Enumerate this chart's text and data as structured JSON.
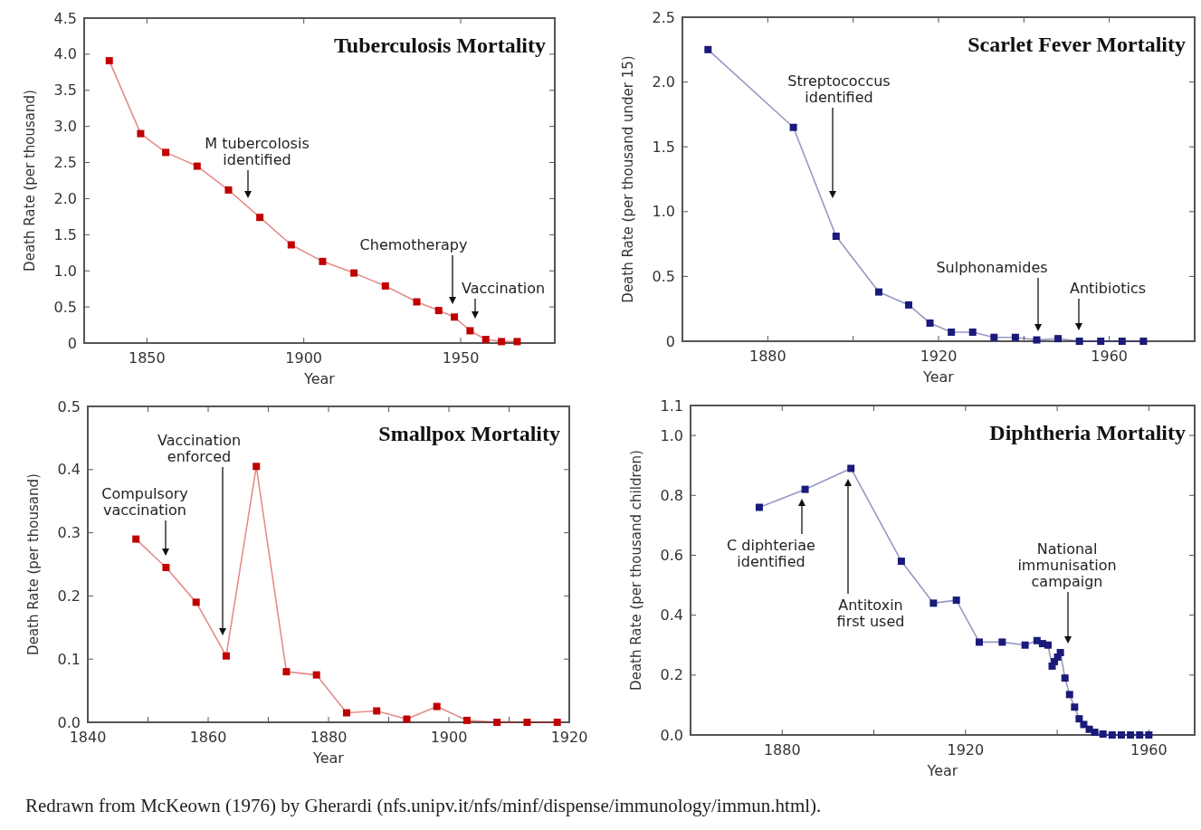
{
  "chart_data": [
    {
      "type": "line",
      "title": "Tuberculosis Mortality",
      "xlabel": "Year",
      "ylabel": "Death Rate (per thousand)",
      "marker": "square",
      "grid": false,
      "x": [
        1838,
        1848,
        1856,
        1866,
        1876,
        1886,
        1896,
        1906,
        1916,
        1926,
        1936,
        1943,
        1948,
        1953,
        1958,
        1963,
        1968
      ],
      "series": [
        {
          "color": "#c00000",
          "values": [
            3.91,
            2.9,
            2.64,
            2.45,
            2.12,
            1.74,
            1.36,
            1.13,
            0.97,
            0.79,
            0.57,
            0.45,
            0.36,
            0.17,
            0.05,
            0.02,
            0.02
          ]
        }
      ],
      "xlim": [
        1830,
        1980
      ],
      "xticks": [
        1850,
        1900,
        1950
      ],
      "ylim": [
        0,
        4.5
      ],
      "yticks": [
        0,
        0.5,
        {
          "value": 1,
          "label": "1.0"
        },
        1.5,
        {
          "value": 2,
          "label": "2.0"
        },
        2.5,
        {
          "value": 3,
          "label": "3.0"
        },
        3.5,
        {
          "value": 4,
          "label": "4.0"
        },
        4.5
      ],
      "annotations": [
        "M tubercolosis\nidentified",
        "Chemotherapy",
        "Vaccination"
      ]
    },
    {
      "type": "line",
      "title": "Scarlet Fever Mortality",
      "xlabel": "Year",
      "ylabel": "Death Rate (per thousand under 15)",
      "marker": "square",
      "grid": false,
      "x": [
        1866,
        1886,
        1896,
        1906,
        1913,
        1918,
        1923,
        1928,
        1933,
        1938,
        1943,
        1948,
        1953,
        1958,
        1963,
        1968
      ],
      "series": [
        {
          "color": "#1a1a7a",
          "values": [
            2.25,
            1.65,
            0.81,
            0.38,
            0.28,
            0.14,
            0.07,
            0.07,
            0.03,
            0.03,
            0.01,
            0.02,
            0,
            0,
            0,
            0
          ]
        }
      ],
      "xlim": [
        1860,
        1980
      ],
      "xticks": [
        {
          "value": 1880,
          "label": "1880"
        },
        {
          "value": 1900,
          "label": null
        },
        {
          "value": 1920,
          "label": "1920"
        },
        {
          "value": 1940,
          "label": null
        },
        {
          "value": 1960,
          "label": "1960"
        }
      ],
      "ylim": [
        0,
        2.5
      ],
      "yticks": [
        0,
        0.5,
        {
          "value": 1,
          "label": "1.0"
        },
        1.5,
        {
          "value": 2,
          "label": "2.0"
        },
        2.5
      ],
      "annotations": [
        "Streptococcus\nidentified",
        "Sulphonamides",
        "Antibiotics"
      ]
    },
    {
      "type": "line",
      "title": "Smallpox Mortality",
      "xlabel": "Year",
      "ylabel": "Death Rate (per thousand)",
      "marker": "square",
      "grid": false,
      "x": [
        1848,
        1853,
        1858,
        1863,
        1868,
        1873,
        1878,
        1883,
        1888,
        1893,
        1898,
        1903,
        1908,
        1913,
        1918
      ],
      "series": [
        {
          "color": "#c00000",
          "values": [
            0.29,
            0.245,
            0.19,
            0.105,
            0.405,
            0.08,
            0.075,
            0.015,
            0.018,
            0.005,
            0.025,
            0.003,
            0,
            0,
            0
          ]
        }
      ],
      "xlim": [
        1840,
        1920
      ],
      "xticks": [
        1840,
        {
          "value": 1850,
          "label": null
        },
        1860,
        {
          "value": 1870,
          "label": null
        },
        1880,
        {
          "value": 1890,
          "label": null
        },
        1900,
        {
          "value": 1910,
          "label": null
        },
        1920
      ],
      "ylim": [
        0,
        0.5
      ],
      "yticks": [
        {
          "value": 0,
          "label": "0.0"
        },
        0.1,
        0.2,
        0.3,
        0.4,
        0.5
      ],
      "annotations": [
        "Compulsory\nvaccination",
        "Vaccination\nenforced"
      ]
    },
    {
      "type": "line",
      "title": "Diphtheria Mortality",
      "xlabel": "Year",
      "ylabel": "Death Rate (per thousand children)",
      "marker": "square",
      "grid": false,
      "x": [
        1875,
        1885,
        1895,
        1906,
        1913,
        1918,
        1923,
        1928,
        1933,
        1935.6,
        1936.8,
        1938,
        1938.9,
        1939.4,
        1940.1,
        1940.7,
        1941.7,
        1942.7,
        1943.8,
        1944.8,
        1945.8,
        1947,
        1948.2,
        1950,
        1952,
        1954,
        1956,
        1958,
        1960
      ],
      "series": [
        {
          "color": "#1a1a7a",
          "values": [
            0.76,
            0.82,
            0.89,
            0.58,
            0.44,
            0.45,
            0.31,
            0.31,
            0.3,
            0.315,
            0.305,
            0.3,
            0.23,
            0.245,
            0.26,
            0.275,
            0.19,
            0.135,
            0.093,
            0.054,
            0.035,
            0.019,
            0.009,
            0.003,
            0,
            0,
            0,
            0,
            0
          ]
        }
      ],
      "xlim": [
        1860,
        1970
      ],
      "xticks": [
        {
          "value": 1880,
          "label": "1880"
        },
        {
          "value": 1900,
          "label": null
        },
        {
          "value": 1920,
          "label": "1920"
        },
        {
          "value": 1940,
          "label": null
        },
        {
          "value": 1960,
          "label": "1960"
        }
      ],
      "ylim": [
        0,
        1.1
      ],
      "yticks": [
        {
          "value": 0,
          "label": "0.0"
        },
        0.2,
        0.4,
        0.6,
        0.8,
        {
          "value": 1,
          "label": "1.0"
        },
        1.1
      ],
      "annotations": [
        "C diphteriae\nidentified",
        "Antitoxin\nfirst used",
        "National\nimmunisation\ncampaign",
        "Redrawn from McKeown (1976) by Gherardi (nfs.unipv.it/nfs/minf/dispense/immunology/immun.html)."
      ]
    }
  ]
}
